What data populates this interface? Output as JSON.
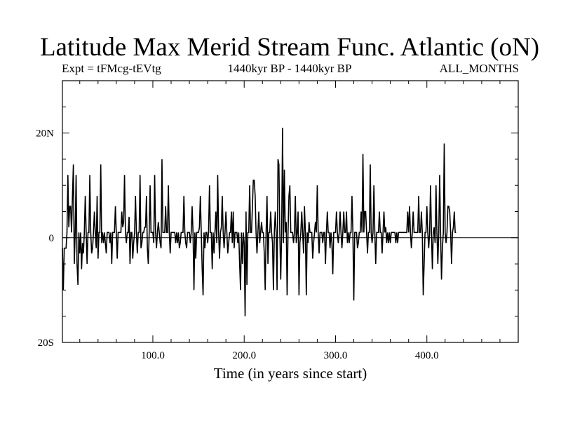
{
  "chart_data": {
    "type": "line",
    "title": "Latitude Max Merid Stream Func. Atlantic (oN)",
    "subtitle_left": "Expt = tFMcg-tEVtg",
    "subtitle_center": "1440kyr BP - 1440kyr BP",
    "subtitle_right": "ALL_MONTHS",
    "xlabel": "Time (in years since start)",
    "ylabel": "",
    "xlim": [
      1,
      500
    ],
    "ylim": [
      -20,
      30
    ],
    "x_ticks": [
      {
        "value": 100,
        "label": "100.0"
      },
      {
        "value": 200,
        "label": "200.0"
      },
      {
        "value": 300,
        "label": "300.0"
      },
      {
        "value": 400,
        "label": "400.0"
      }
    ],
    "y_ticks": [
      {
        "value": 20,
        "label": "20N"
      },
      {
        "value": 0,
        "label": "0"
      },
      {
        "value": -20,
        "label": "20S"
      }
    ],
    "grid": false,
    "legend": false,
    "series": [
      {
        "x_start": 1,
        "x_step": 1,
        "values": [
          -2,
          -10,
          -2,
          -2,
          -2,
          1,
          12,
          2,
          6,
          6,
          1,
          8,
          14,
          -5,
          1,
          12,
          -5,
          -9,
          1,
          -3,
          1,
          -6,
          -1,
          -3,
          1,
          8,
          1,
          -5,
          1,
          1,
          12,
          1,
          -3,
          -2,
          1,
          5,
          1,
          -2,
          8,
          -4,
          1,
          1,
          14,
          -1,
          1,
          -1,
          1,
          -1,
          -3,
          1,
          1,
          1,
          -1,
          1,
          -5,
          1,
          1,
          1,
          6,
          1,
          -4,
          1,
          1,
          1,
          1,
          5,
          2,
          3,
          12,
          1,
          -1,
          1,
          1,
          4,
          -5,
          1,
          1,
          -4,
          -1,
          1,
          8,
          1,
          -3,
          1,
          1,
          12,
          -2,
          -1,
          1,
          1,
          2,
          2,
          8,
          -2,
          -5,
          1,
          10,
          1,
          1,
          1,
          -1,
          12,
          1,
          -2,
          1,
          3,
          1,
          -1,
          -2,
          15,
          1,
          1,
          1,
          6,
          1,
          1,
          10,
          1,
          -3,
          1,
          1,
          1,
          1,
          1,
          -1,
          1,
          -1,
          1,
          -2,
          -1,
          1,
          1,
          1,
          8,
          1,
          -1,
          -2,
          1,
          1,
          1,
          -1,
          1,
          6,
          1,
          -10,
          1,
          -4,
          1,
          1,
          1,
          2,
          8,
          1,
          -6,
          -11,
          1,
          -2,
          1,
          1,
          -1,
          1,
          10,
          1,
          1,
          -6,
          1,
          -3,
          1,
          5,
          -1,
          12,
          1,
          -4,
          1,
          2,
          8,
          1,
          -2,
          1,
          5,
          1,
          -3,
          -1,
          1,
          1,
          5,
          -1,
          5,
          -2,
          1,
          1,
          1,
          -1,
          1,
          -5,
          -10,
          1,
          -5,
          1,
          -1,
          -15,
          5,
          -9,
          1,
          1,
          10,
          1,
          1,
          6,
          11,
          11,
          8,
          1,
          -3,
          1,
          5,
          -1,
          1,
          3,
          1,
          1,
          -3,
          -10,
          1,
          8,
          -5,
          1,
          1,
          5,
          1,
          -1,
          -10,
          1,
          5,
          1,
          -10,
          15,
          14,
          1,
          -8,
          1,
          21,
          -1,
          13,
          1,
          3,
          -11,
          1,
          8,
          10,
          1,
          1,
          1,
          -1,
          1,
          8,
          -1,
          1,
          5,
          -11,
          -1,
          1,
          5,
          1,
          -3,
          6,
          1,
          -11,
          1,
          -1,
          3,
          1,
          1,
          1,
          -4,
          -1,
          1,
          3,
          1,
          10,
          1,
          -3,
          1,
          1,
          1,
          -1,
          1,
          1,
          -5,
          1,
          5,
          1,
          1,
          -2,
          1,
          -1,
          -7,
          1,
          1,
          1,
          5,
          1,
          -1,
          1,
          5,
          1,
          -2,
          1,
          5,
          1,
          1,
          5,
          -1,
          1,
          -1,
          1,
          1,
          8,
          1,
          -12,
          1,
          1,
          1,
          -2,
          -1,
          1,
          1,
          5,
          1,
          16,
          1,
          5,
          5,
          1,
          -3,
          1,
          1,
          14,
          1,
          -1,
          1,
          10,
          1,
          -5,
          1,
          1,
          1,
          5,
          1,
          1,
          -3,
          1,
          5,
          1,
          2,
          -1,
          1,
          -1,
          1,
          -1,
          1,
          1,
          1,
          1,
          1,
          -1,
          1,
          -1,
          1,
          1,
          1,
          1,
          1,
          1,
          1,
          1,
          1,
          1,
          5,
          1,
          6,
          1,
          -2,
          1,
          5,
          1,
          1,
          1,
          1,
          1,
          8,
          1,
          1,
          5,
          1,
          -11,
          -5,
          1,
          1,
          6,
          1,
          -2,
          1,
          10,
          1,
          -6,
          1,
          2,
          -1,
          10,
          1,
          -5,
          1,
          12,
          1,
          -8,
          -2,
          1,
          18,
          1,
          -1,
          1,
          6,
          6,
          5,
          1,
          -5,
          1,
          2,
          5,
          1,
          1
        ]
      }
    ]
  }
}
